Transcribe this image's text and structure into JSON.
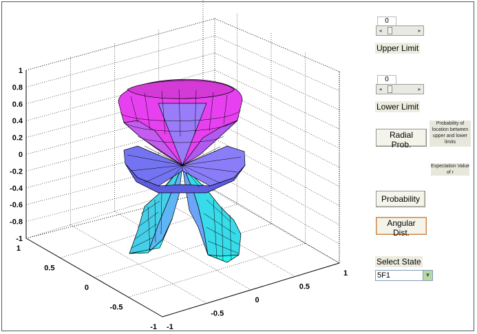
{
  "plot": {
    "z_ticks": [
      "1",
      "0.8",
      "0.6",
      "0.4",
      "0.2",
      "0",
      "-0.2",
      "-0.4",
      "-0.6",
      "-0.8",
      "-1"
    ],
    "y_ticks_left": [
      "1",
      "0.5",
      "0",
      "-0.5",
      "-1"
    ],
    "x_ticks_bottom": [
      "-1",
      "-0.5",
      "0",
      "0.5",
      "1"
    ],
    "colors": {
      "top_lobe": "#ee33ee",
      "middle_ring": "#8080ff",
      "bottom_lobe": "#33e6f0",
      "grid": "#000000"
    }
  },
  "controls": {
    "upper": {
      "value": "0",
      "label": "Upper Limit",
      "level": 0.1
    },
    "lower": {
      "value": "0",
      "label": "Lower Limit",
      "level": 0.1
    },
    "radial_button": "Radial Prob.",
    "radial_note": "Probability of location between upper and lower limits",
    "expectation_note": "Expectation Value of r",
    "probability_button": "Probability",
    "angular_button": "Angular Dist.",
    "select_label": "Select State",
    "select_value": "5F1"
  }
}
